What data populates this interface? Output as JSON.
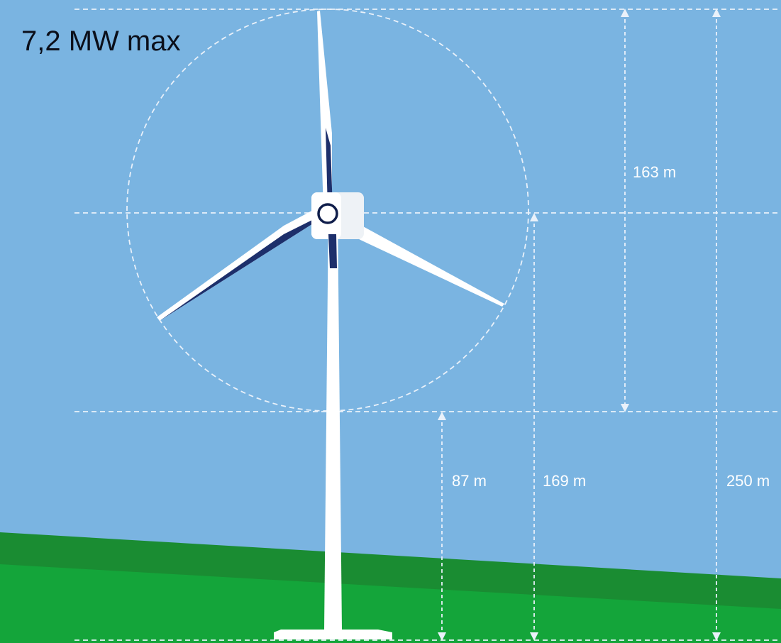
{
  "title": "7,2 MW max",
  "colors": {
    "sky": "#7ab4e1",
    "ground_dark": "#1a8c32",
    "ground_light": "#14a53a",
    "turbine": "#ffffff",
    "blade_shadow": "#1d2f6b",
    "guide": "#e9f1fa"
  },
  "dimensions": {
    "rotor_diameter": "163 m",
    "blade_tip_clearance": "87 m",
    "hub_height": "169 m",
    "total_height": "250 m"
  }
}
